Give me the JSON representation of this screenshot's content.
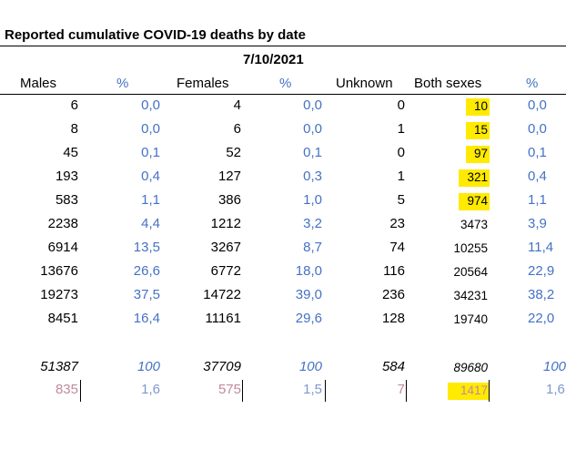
{
  "title": "Reported cumulative COVID-19 deaths by date",
  "date": "7/10/2021",
  "headers": {
    "males": "Males",
    "males_pct": "%",
    "females": "Females",
    "females_pct": "%",
    "unknown": "Unknown",
    "both": "Both sexes",
    "both_pct": "%"
  },
  "rows": [
    {
      "males": "6",
      "males_pct": "0,0",
      "females": "4",
      "females_pct": "0,0",
      "unknown": "0",
      "both": "10",
      "both_pct": "0,0",
      "highlight": true
    },
    {
      "males": "8",
      "males_pct": "0,0",
      "females": "6",
      "females_pct": "0,0",
      "unknown": "1",
      "both": "15",
      "both_pct": "0,0",
      "highlight": true
    },
    {
      "males": "45",
      "males_pct": "0,1",
      "females": "52",
      "females_pct": "0,1",
      "unknown": "0",
      "both": "97",
      "both_pct": "0,1",
      "highlight": true
    },
    {
      "males": "193",
      "males_pct": "0,4",
      "females": "127",
      "females_pct": "0,3",
      "unknown": "1",
      "both": "321",
      "both_pct": "0,4",
      "highlight": true
    },
    {
      "males": "583",
      "males_pct": "1,1",
      "females": "386",
      "females_pct": "1,0",
      "unknown": "5",
      "both": "974",
      "both_pct": "1,1",
      "highlight": true
    },
    {
      "males": "2238",
      "males_pct": "4,4",
      "females": "1212",
      "females_pct": "3,2",
      "unknown": "23",
      "both": "3473",
      "both_pct": "3,9",
      "highlight": false
    },
    {
      "males": "6914",
      "males_pct": "13,5",
      "females": "3267",
      "females_pct": "8,7",
      "unknown": "74",
      "both": "10255",
      "both_pct": "11,4",
      "highlight": false
    },
    {
      "males": "13676",
      "males_pct": "26,6",
      "females": "6772",
      "females_pct": "18,0",
      "unknown": "116",
      "both": "20564",
      "both_pct": "22,9",
      "highlight": false
    },
    {
      "males": "19273",
      "males_pct": "37,5",
      "females": "14722",
      "females_pct": "39,0",
      "unknown": "236",
      "both": "34231",
      "both_pct": "38,2",
      "highlight": false
    },
    {
      "males": "8451",
      "males_pct": "16,4",
      "females": "11161",
      "females_pct": "29,6",
      "unknown": "128",
      "both": "19740",
      "both_pct": "22,0",
      "highlight": false
    }
  ],
  "totals": {
    "males": "51387",
    "males_pct": "100",
    "females": "37709",
    "females_pct": "100",
    "unknown": "584",
    "both": "89680",
    "both_pct": "100"
  },
  "new_totals": {
    "males": "835",
    "males_pct": "1,6",
    "females": "575",
    "females_pct": "1,5",
    "unknown": "7",
    "both": "1417",
    "both_pct": "1,6",
    "highlight": true
  },
  "colors": {
    "number": "#000000",
    "percent": "#4472c4",
    "highlight": "#ffea00",
    "new_number": "#c08aa0"
  }
}
